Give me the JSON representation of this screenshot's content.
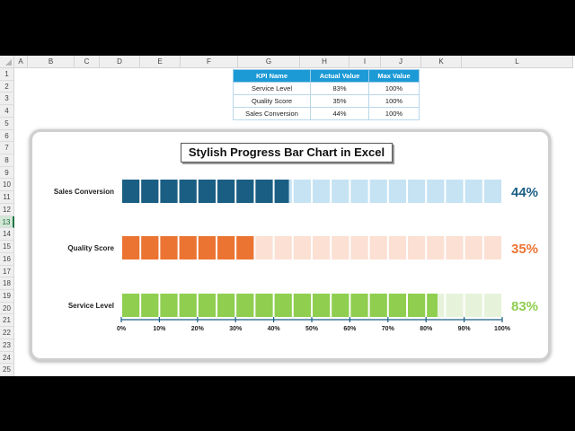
{
  "columns": [
    "A",
    "B",
    "C",
    "D",
    "E",
    "F",
    "G",
    "H",
    "I",
    "J",
    "K",
    "L"
  ],
  "rows": [
    "1",
    "2",
    "3",
    "4",
    "5",
    "6",
    "7",
    "8",
    "9",
    "10",
    "11",
    "12",
    "13",
    "14",
    "15",
    "16",
    "17",
    "18",
    "19",
    "20",
    "21",
    "22",
    "23",
    "24",
    "25"
  ],
  "selected_row": "13",
  "kpi_table": {
    "headers": [
      "KPI Name",
      "Actual Value",
      "Max Value"
    ],
    "rows": [
      {
        "name": "Service Level",
        "actual": "83%",
        "max": "100%"
      },
      {
        "name": "Quality Score",
        "actual": "35%",
        "max": "100%"
      },
      {
        "name": "Sales Conversion",
        "actual": "44%",
        "max": "100%"
      }
    ]
  },
  "chart_data": {
    "type": "bar",
    "orientation": "horizontal",
    "title": "Stylish Progress Bar Chart in Excel",
    "categories": [
      "Sales Conversion",
      "Quality Score",
      "Service Level"
    ],
    "values": [
      44,
      35,
      83
    ],
    "value_labels": [
      "44%",
      "35%",
      "83%"
    ],
    "colors": [
      "#1b5e84",
      "#ec7433",
      "#8fce4f"
    ],
    "track_colors": [
      "#c5e3f3",
      "#fbe0d3",
      "#e6f3da"
    ],
    "xlim": [
      0,
      100
    ],
    "segments": 20,
    "x_ticks": [
      0,
      10,
      20,
      30,
      40,
      50,
      60,
      70,
      80,
      90,
      100
    ],
    "x_tick_labels": [
      "0%",
      "10%",
      "20%",
      "30%",
      "40%",
      "50%",
      "60%",
      "70%",
      "80%",
      "90%",
      "100%"
    ],
    "grid": false,
    "legend": "none"
  }
}
